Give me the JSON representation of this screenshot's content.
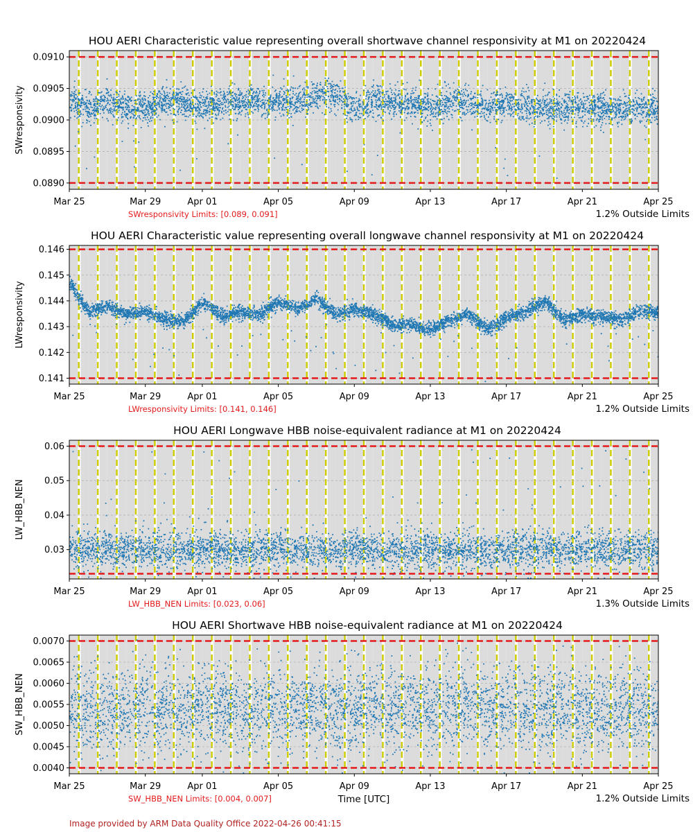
{
  "figure": {
    "credit": "Image provided by ARM Data Quality Office 2022-04-26 00:41:15",
    "xlabel": "Time [UTC]",
    "x_tick_labels": [
      "Mar 25",
      "Mar 29",
      "Apr 01",
      "Apr 05",
      "Apr 09",
      "Apr 13",
      "Apr 17",
      "Apr 21",
      "Apr 25"
    ],
    "x_tick_dates": [
      "2022-03-25",
      "2022-03-29",
      "2022-04-01",
      "2022-04-05",
      "2022-04-09",
      "2022-04-13",
      "2022-04-17",
      "2022-04-21",
      "2022-04-25"
    ],
    "colors": {
      "data": "#1f77b4",
      "limit_line": "#e31a1c",
      "limit_text": "#e31a1c",
      "night_band": "#dcdcdc",
      "day_marker": "#cccc00",
      "grid": "#b0b0b0",
      "credit": "#b22222"
    }
  },
  "chart_data": [
    {
      "type": "scatter",
      "title": "HOU AERI Characteristic value representing overall shortwave channel responsivity at M1 on 20220424",
      "ylabel": "SWresponsivity",
      "xlim": [
        "2022-03-25",
        "2022-04-25"
      ],
      "ylim": [
        0.0889,
        0.0911
      ],
      "yticks": [
        0.089,
        0.0895,
        0.09,
        0.0905,
        0.091
      ],
      "ytick_labels": [
        "0.0890",
        "0.0895",
        "0.0900",
        "0.0905",
        "0.0910"
      ],
      "limits": [
        0.089,
        0.091
      ],
      "limits_text": "SWresponsivity Limits: [0.089, 0.091]",
      "outside_text": "1.2% Outside Limits",
      "grid": true,
      "series_summary": {
        "center": 0.09025,
        "band_halfwidth": 0.0003,
        "min_outlier": 0.089,
        "max_outlier": 0.0909
      },
      "daily_means": [
        0.0903,
        0.0902,
        0.0903,
        0.0902,
        0.0902,
        0.0903,
        0.0903,
        0.0902,
        0.0903,
        0.0903,
        0.0903,
        0.0903,
        0.0903,
        0.0904,
        0.0904,
        0.0902,
        0.0903,
        0.0903,
        0.0903,
        0.0902,
        0.0903,
        0.0903,
        0.0902,
        0.0903,
        0.0902,
        0.0902,
        0.0902,
        0.0902,
        0.0902,
        0.0902,
        0.0902
      ]
    },
    {
      "type": "scatter",
      "title": "HOU AERI Characteristic value representing overall longwave channel responsivity at M1 on 20220424",
      "ylabel": "LWresponsivity",
      "xlim": [
        "2022-03-25",
        "2022-04-25"
      ],
      "ylim": [
        0.14077,
        0.14615
      ],
      "yticks": [
        0.141,
        0.142,
        0.143,
        0.144,
        0.145,
        0.146
      ],
      "ytick_labels": [
        "0.141",
        "0.142",
        "0.143",
        "0.144",
        "0.145",
        "0.146"
      ],
      "limits": [
        0.141,
        0.146
      ],
      "limits_text": "LWresponsivity Limits: [0.141, 0.146]",
      "outside_text": "1.2% Outside Limits",
      "grid": true,
      "daily_means": [
        0.1447,
        0.1436,
        0.1438,
        0.1435,
        0.1436,
        0.1433,
        0.1432,
        0.144,
        0.1434,
        0.1436,
        0.1435,
        0.144,
        0.1437,
        0.1441,
        0.1435,
        0.1437,
        0.1435,
        0.1431,
        0.1431,
        0.1429,
        0.1433,
        0.1435,
        0.1429,
        0.1434,
        0.1436,
        0.144,
        0.1433,
        0.1435,
        0.1434,
        0.1433,
        0.1436
      ]
    },
    {
      "type": "scatter",
      "title": "HOU AERI Longwave HBB noise-equivalent radiance at M1 on 20220424",
      "ylabel": "LW_HBB_NEN",
      "xlim": [
        "2022-03-25",
        "2022-04-25"
      ],
      "ylim": [
        0.0215,
        0.0617
      ],
      "yticks": [
        0.03,
        0.04,
        0.05,
        0.06
      ],
      "ytick_labels": [
        "0.03",
        "0.04",
        "0.05",
        "0.06"
      ],
      "limits": [
        0.023,
        0.06
      ],
      "limits_text": "LW_HBB_NEN Limits: [0.023, 0.06]",
      "outside_text": "1.3% Outside Limits",
      "grid": true,
      "series_summary": {
        "center": 0.03,
        "band_halfwidth": 0.005,
        "min_outlier": 0.023,
        "max_outlier": 0.06
      }
    },
    {
      "type": "scatter",
      "title": "HOU AERI Shortwave HBB noise-equivalent radiance at M1 on 20220424",
      "ylabel": "SW_HBB_NEN",
      "xlim": [
        "2022-03-25",
        "2022-04-25"
      ],
      "ylim": [
        0.00386,
        0.00714
      ],
      "yticks": [
        0.004,
        0.0045,
        0.005,
        0.0055,
        0.006,
        0.0065,
        0.007
      ],
      "ytick_labels": [
        "0.0040",
        "0.0045",
        "0.0050",
        "0.0055",
        "0.0060",
        "0.0065",
        "0.0070"
      ],
      "limits": [
        0.004,
        0.007
      ],
      "limits_text": "SW_HBB_NEN Limits: [0.004, 0.007]",
      "outside_text": "1.2% Outside Limits",
      "grid": true,
      "series_summary": {
        "center": 0.0054,
        "band_halfwidth": 0.0009,
        "min_outlier": 0.004,
        "max_outlier": 0.007
      }
    }
  ]
}
